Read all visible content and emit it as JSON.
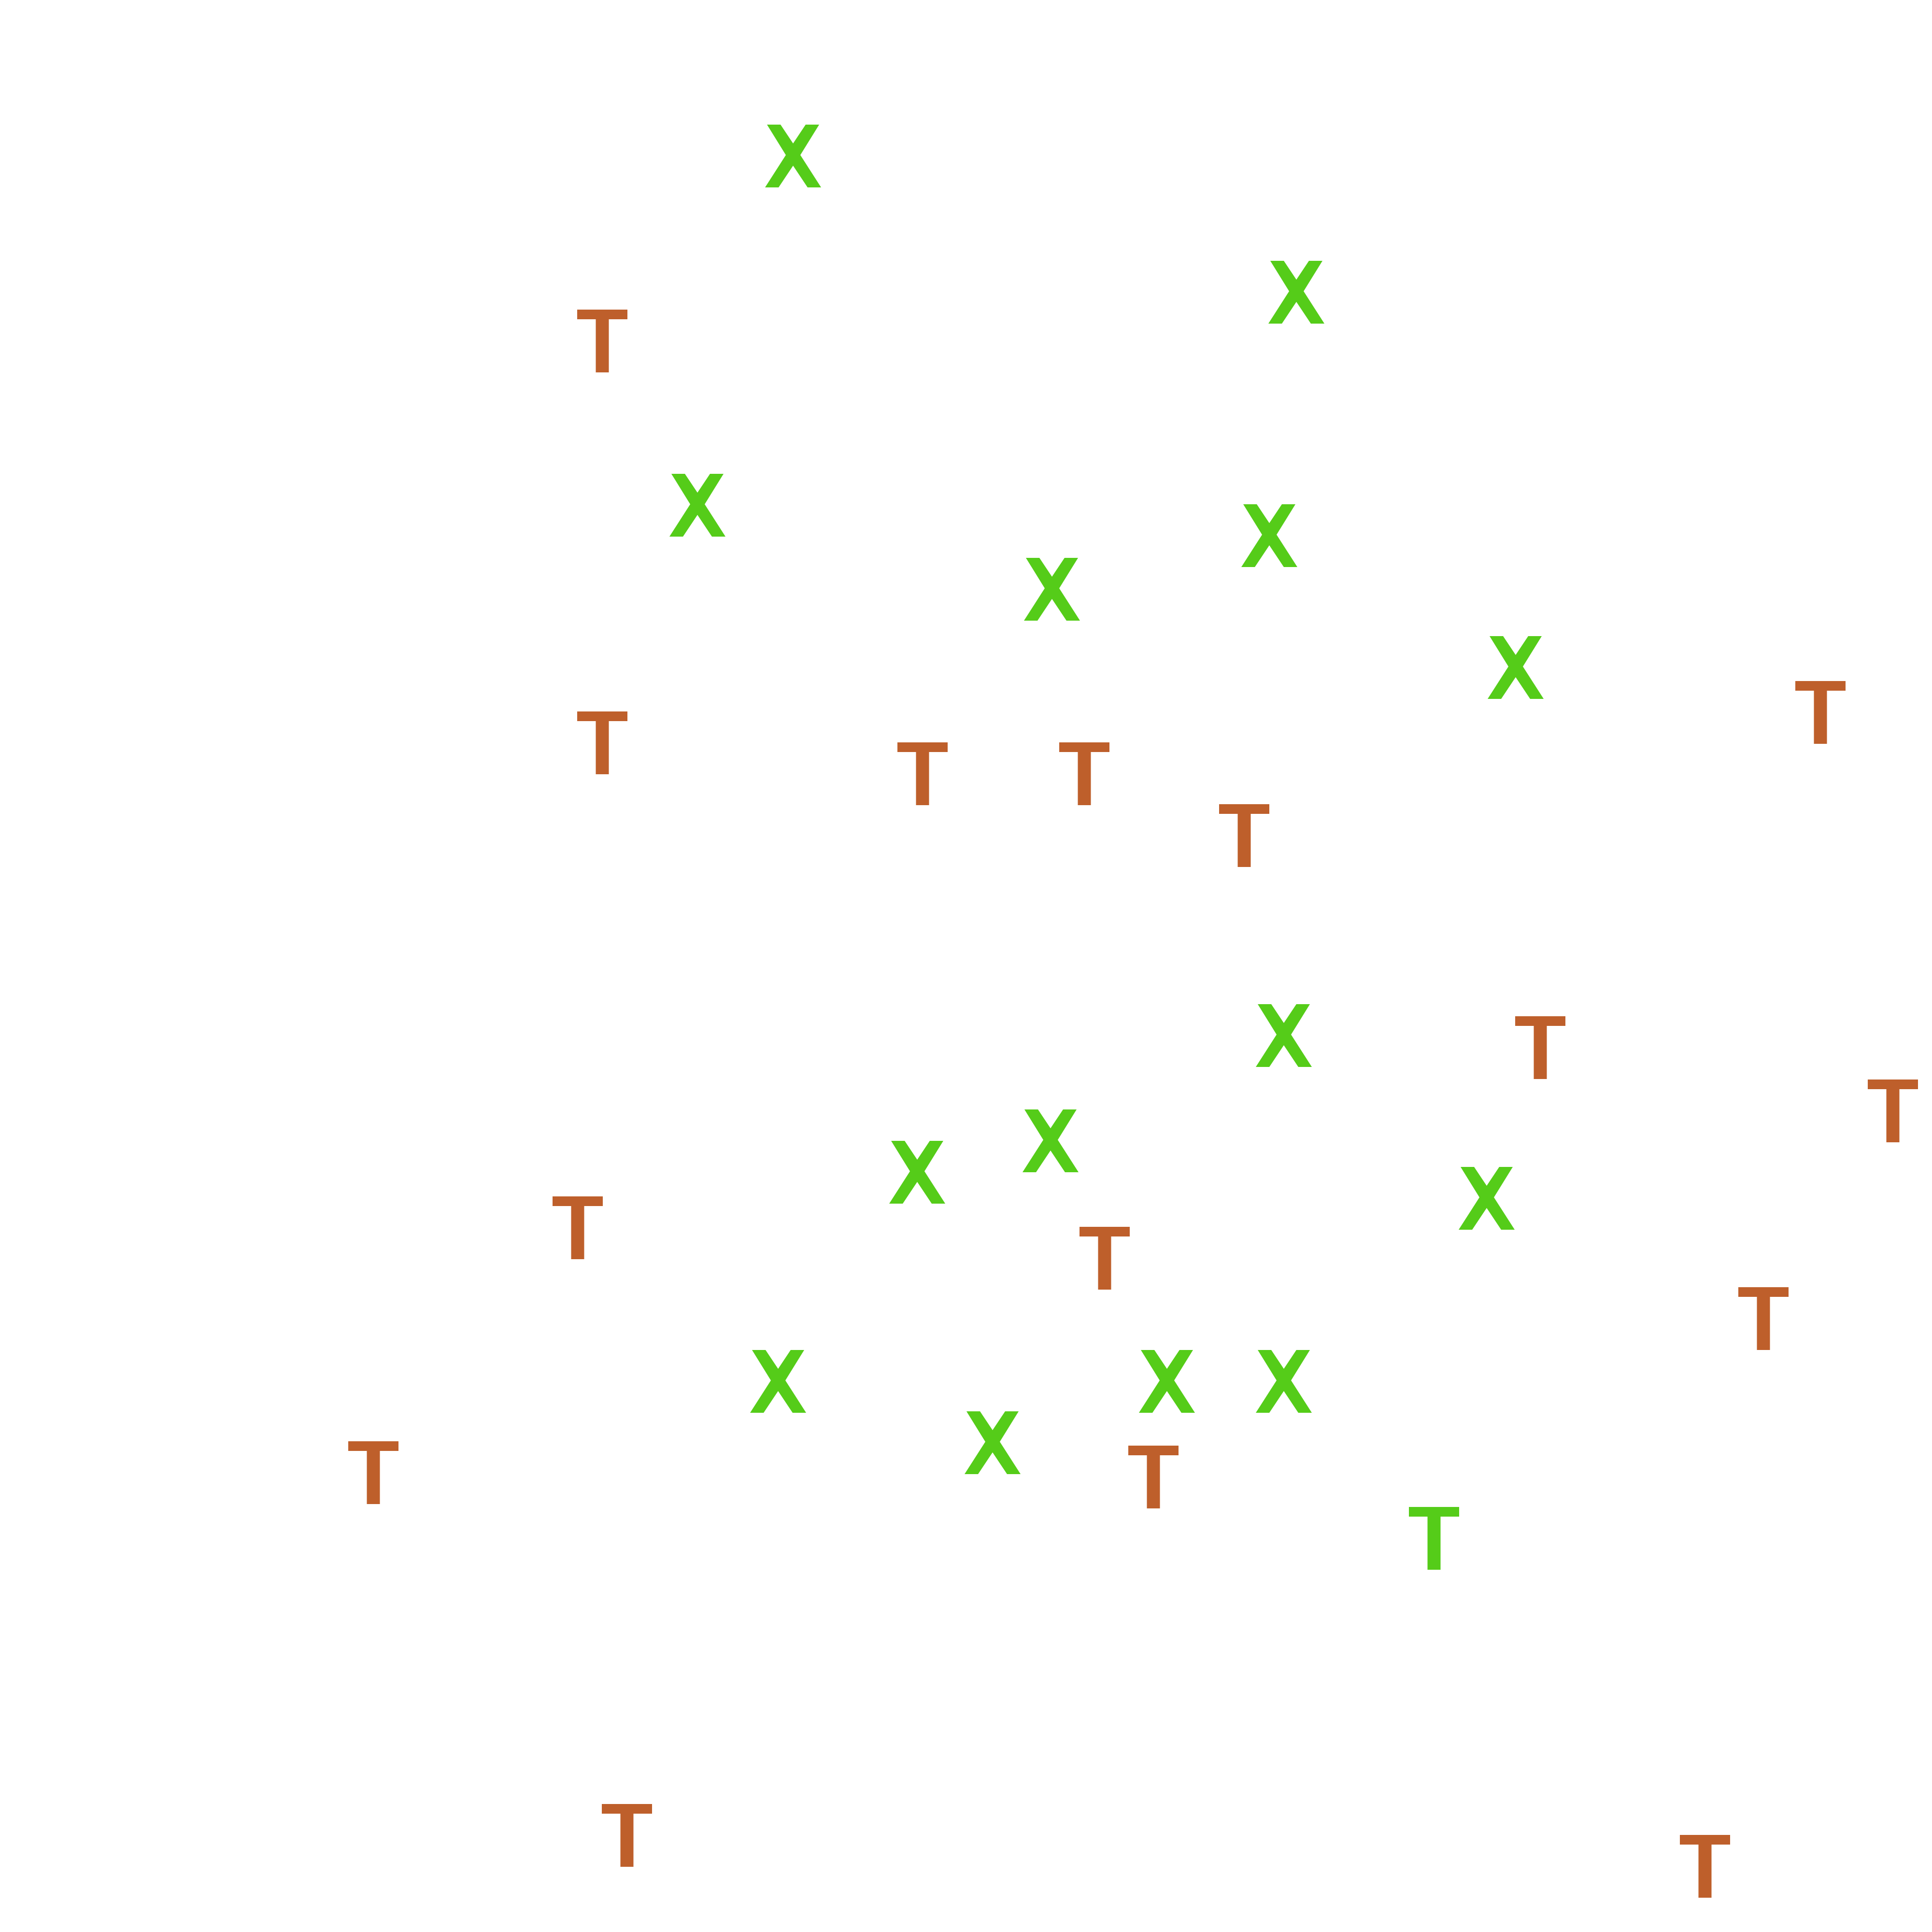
{
  "colors": {
    "background": "#ffffff",
    "orange": "#be5f2b",
    "green": "#55cc19"
  },
  "glyphs": [
    {
      "letter": "X",
      "color": "green"
    },
    {
      "letter": "X",
      "color": "green"
    },
    {
      "letter": "X",
      "color": "green"
    },
    {
      "letter": "X",
      "color": "green"
    },
    {
      "letter": "X",
      "color": "green"
    },
    {
      "letter": "X",
      "color": "green"
    },
    {
      "letter": "X",
      "color": "green"
    },
    {
      "letter": "X",
      "color": "green"
    },
    {
      "letter": "X",
      "color": "green"
    },
    {
      "letter": "X",
      "color": "green"
    },
    {
      "letter": "X",
      "color": "green"
    },
    {
      "letter": "X",
      "color": "green"
    },
    {
      "letter": "X",
      "color": "green"
    },
    {
      "letter": "X",
      "color": "green"
    },
    {
      "letter": "T",
      "color": "orange"
    },
    {
      "letter": "T",
      "color": "orange"
    },
    {
      "letter": "T",
      "color": "orange"
    },
    {
      "letter": "T",
      "color": "orange"
    },
    {
      "letter": "T",
      "color": "orange"
    },
    {
      "letter": "T",
      "color": "orange"
    },
    {
      "letter": "T",
      "color": "orange"
    },
    {
      "letter": "T",
      "color": "orange"
    },
    {
      "letter": "T",
      "color": "orange"
    },
    {
      "letter": "T",
      "color": "orange"
    },
    {
      "letter": "T",
      "color": "orange"
    },
    {
      "letter": "T",
      "color": "orange"
    },
    {
      "letter": "T",
      "color": "orange"
    },
    {
      "letter": "T",
      "color": "orange"
    },
    {
      "letter": "T",
      "color": "orange"
    },
    {
      "letter": "T",
      "color": "green"
    }
  ]
}
